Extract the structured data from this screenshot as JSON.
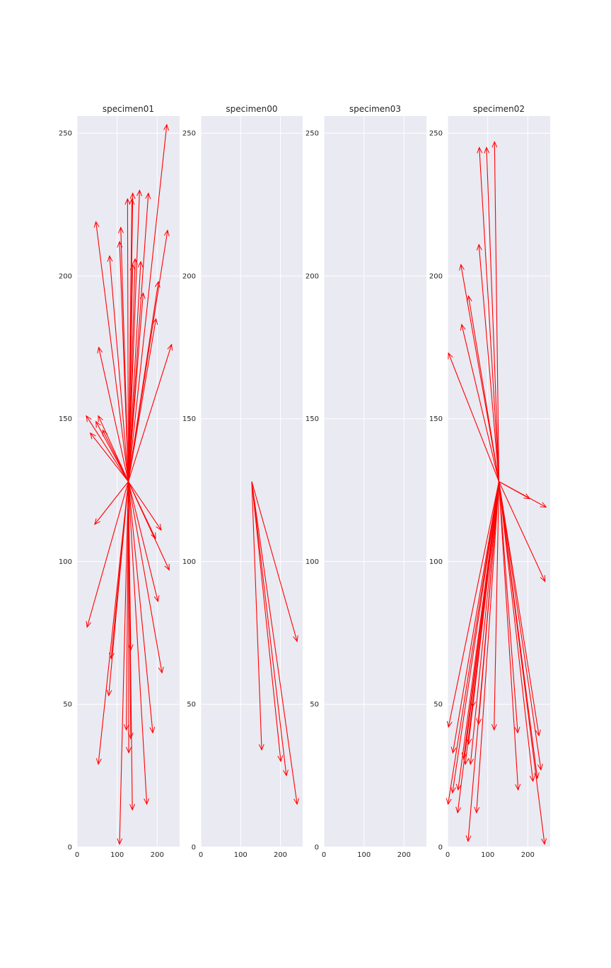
{
  "chart_data": [
    {
      "type": "vector_field",
      "title": "specimen01",
      "origin": [
        128,
        128
      ],
      "xlim": [
        0,
        256
      ],
      "ylim": [
        0,
        256
      ],
      "xticks": [
        "0",
        "100",
        "200"
      ],
      "yticks": [
        "0",
        "50",
        "100",
        "150",
        "200",
        "250"
      ],
      "grid": true,
      "arrow_color": "#ff0000",
      "vectors": [
        [
          224,
          253
        ],
        [
          47,
          219
        ],
        [
          109,
          217
        ],
        [
          106,
          212
        ],
        [
          126,
          227
        ],
        [
          139,
          229
        ],
        [
          137,
          227
        ],
        [
          156,
          230
        ],
        [
          178,
          229
        ],
        [
          226,
          216
        ],
        [
          81,
          207
        ],
        [
          139,
          204
        ],
        [
          145,
          206
        ],
        [
          159,
          205
        ],
        [
          165,
          194
        ],
        [
          203,
          198
        ],
        [
          197,
          185
        ],
        [
          236,
          176
        ],
        [
          54,
          175
        ],
        [
          23,
          151
        ],
        [
          53,
          151
        ],
        [
          47,
          149
        ],
        [
          33,
          145
        ],
        [
          64,
          146
        ],
        [
          44,
          113
        ],
        [
          210,
          111
        ],
        [
          196,
          108
        ],
        [
          230,
          97
        ],
        [
          202,
          86
        ],
        [
          25,
          77
        ],
        [
          212,
          61
        ],
        [
          134,
          69
        ],
        [
          85,
          66
        ],
        [
          79,
          53
        ],
        [
          123,
          41
        ],
        [
          134,
          38
        ],
        [
          189,
          40
        ],
        [
          129,
          33
        ],
        [
          53,
          29
        ],
        [
          174,
          15
        ],
        [
          138,
          13
        ],
        [
          106,
          1
        ]
      ]
    },
    {
      "type": "vector_field",
      "title": "specimen00",
      "origin": [
        128,
        128
      ],
      "xlim": [
        0,
        256
      ],
      "ylim": [
        0,
        256
      ],
      "xticks": [
        "0",
        "100",
        "200"
      ],
      "yticks": [
        "0",
        "50",
        "100",
        "150",
        "200",
        "250"
      ],
      "grid": true,
      "arrow_color": "#ff0000",
      "vectors": [
        [
          242,
          72
        ],
        [
          153,
          34
        ],
        [
          201,
          30
        ],
        [
          215,
          25
        ],
        [
          242,
          15
        ]
      ]
    },
    {
      "type": "vector_field",
      "title": "specimen03",
      "origin": [
        128,
        128
      ],
      "xlim": [
        0,
        256
      ],
      "ylim": [
        0,
        256
      ],
      "xticks": [
        "0",
        "100",
        "200"
      ],
      "yticks": [
        "0",
        "50",
        "100",
        "150",
        "200",
        "250"
      ],
      "grid": true,
      "arrow_color": "#ff0000",
      "vectors": []
    },
    {
      "type": "vector_field",
      "title": "specimen02",
      "origin": [
        128,
        128
      ],
      "xlim": [
        0,
        256
      ],
      "ylim": [
        0,
        256
      ],
      "xticks": [
        "0",
        "100",
        "200"
      ],
      "yticks": [
        "0",
        "50",
        "100",
        "150",
        "200",
        "250"
      ],
      "grid": true,
      "arrow_color": "#ff0000",
      "vectors": [
        [
          117,
          247
        ],
        [
          79,
          245
        ],
        [
          97,
          245
        ],
        [
          78,
          211
        ],
        [
          33,
          204
        ],
        [
          52,
          193
        ],
        [
          35,
          183
        ],
        [
          2,
          173
        ],
        [
          205,
          122
        ],
        [
          246,
          119
        ],
        [
          243,
          93
        ],
        [
          2,
          42
        ],
        [
          175,
          40
        ],
        [
          228,
          39
        ],
        [
          13,
          33
        ],
        [
          116,
          41
        ],
        [
          77,
          43
        ],
        [
          62,
          49
        ],
        [
          52,
          36
        ],
        [
          40,
          31
        ],
        [
          44,
          29
        ],
        [
          57,
          29
        ],
        [
          233,
          27
        ],
        [
          12,
          19
        ],
        [
          26,
          20
        ],
        [
          176,
          20
        ],
        [
          213,
          23
        ],
        [
          224,
          24
        ],
        [
          72,
          12
        ],
        [
          25,
          12
        ],
        [
          1,
          15
        ],
        [
          51,
          2
        ],
        [
          242,
          1
        ]
      ]
    }
  ]
}
